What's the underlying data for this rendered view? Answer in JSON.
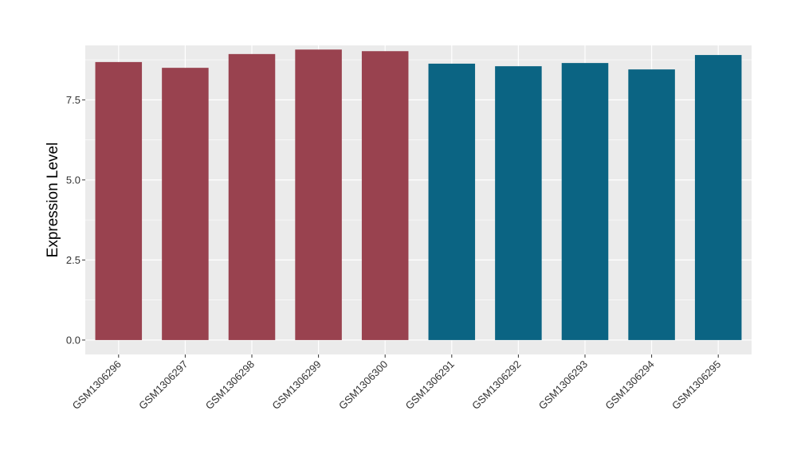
{
  "chart_data": {
    "type": "bar",
    "title": "",
    "xlabel": "",
    "ylabel": "Expression Level",
    "ylim": [
      -0.45,
      9.2
    ],
    "yticks": [
      0.0,
      2.5,
      5.0,
      7.5
    ],
    "ytick_labels": [
      "0.0",
      "2.5",
      "5.0",
      "7.5"
    ],
    "grid": true,
    "legend": "none",
    "categories": [
      "GSM1306296",
      "GSM1306297",
      "GSM1306298",
      "GSM1306299",
      "GSM1306300",
      "GSM1306291",
      "GSM1306292",
      "GSM1306293",
      "GSM1306294",
      "GSM1306295"
    ],
    "values": [
      8.68,
      8.5,
      8.93,
      9.07,
      9.02,
      8.63,
      8.55,
      8.65,
      8.45,
      8.9
    ],
    "bar_colors": [
      "#99424f",
      "#99424f",
      "#99424f",
      "#99424f",
      "#99424f",
      "#0b6483",
      "#0b6483",
      "#0b6483",
      "#0b6483",
      "#0b6483"
    ],
    "panel_background": "#ebebeb",
    "grid_color": "#ffffff"
  }
}
